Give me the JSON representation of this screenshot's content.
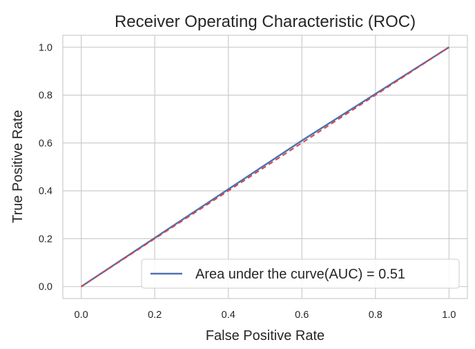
{
  "chart_data": {
    "type": "line",
    "title": "Receiver Operating Characteristic (ROC)",
    "xlabel": "False Positive Rate",
    "ylabel": "True Positive Rate",
    "xlim": [
      -0.05,
      1.05
    ],
    "ylim": [
      -0.05,
      1.05
    ],
    "xticks": [
      "0.0",
      "0.2",
      "0.4",
      "0.6",
      "0.8",
      "1.0"
    ],
    "yticks": [
      "0.0",
      "0.2",
      "0.4",
      "0.6",
      "0.8",
      "1.0"
    ],
    "grid": true,
    "legend_position": "lower-right",
    "series": [
      {
        "name": "Area under the curve(AUC) = 0.51",
        "color": "#4c72b0",
        "style": "solid",
        "x": [
          0.0,
          0.6,
          1.0
        ],
        "y": [
          0.0,
          0.61,
          1.0
        ]
      },
      {
        "color": "#dd4444",
        "style": "dashed",
        "x": [
          0.0,
          1.0
        ],
        "y": [
          0.0,
          1.0
        ]
      }
    ]
  }
}
